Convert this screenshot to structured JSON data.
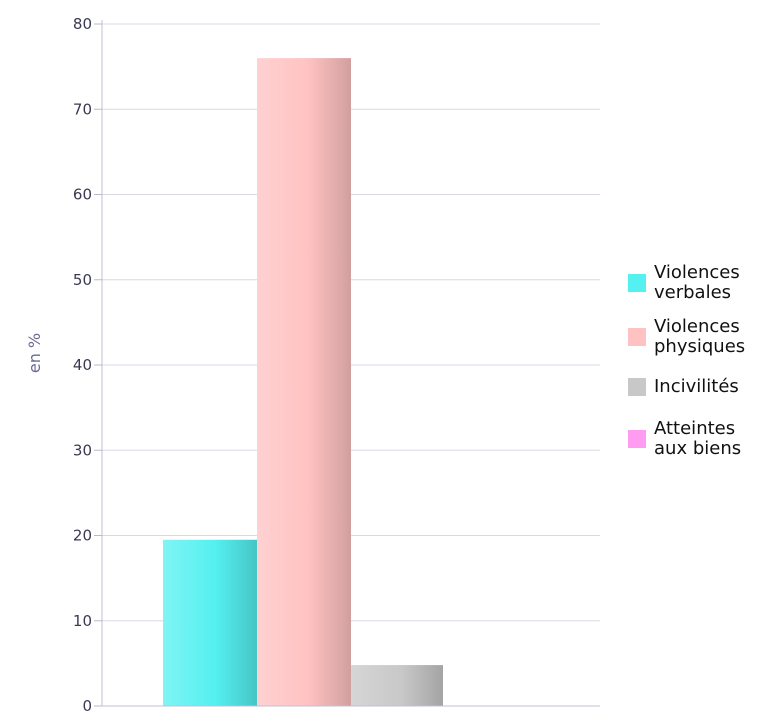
{
  "chart_data": {
    "type": "bar",
    "title": "",
    "xlabel": "",
    "ylabel": "en %",
    "ylim": [
      0,
      80
    ],
    "y_ticks": [
      0,
      10,
      20,
      30,
      40,
      50,
      60,
      70,
      80
    ],
    "grid": true,
    "legend_position": "right",
    "series": [
      {
        "name": "Violences verbales",
        "legend_lines": [
          "Violences",
          "verbales"
        ],
        "value": 19.5,
        "color": "#55f0f0"
      },
      {
        "name": "Violences physiques",
        "legend_lines": [
          "Violences",
          "physiques"
        ],
        "value": 76,
        "color": "#ffc2c2"
      },
      {
        "name": "Incivilités",
        "legend_lines": [
          "Incivilités"
        ],
        "value": 4.8,
        "color": "#c8c8c8"
      },
      {
        "name": "Atteintes aux biens",
        "legend_lines": [
          "Atteintes",
          "aux biens"
        ],
        "value": 0,
        "color": "#ff9cf2"
      }
    ]
  }
}
